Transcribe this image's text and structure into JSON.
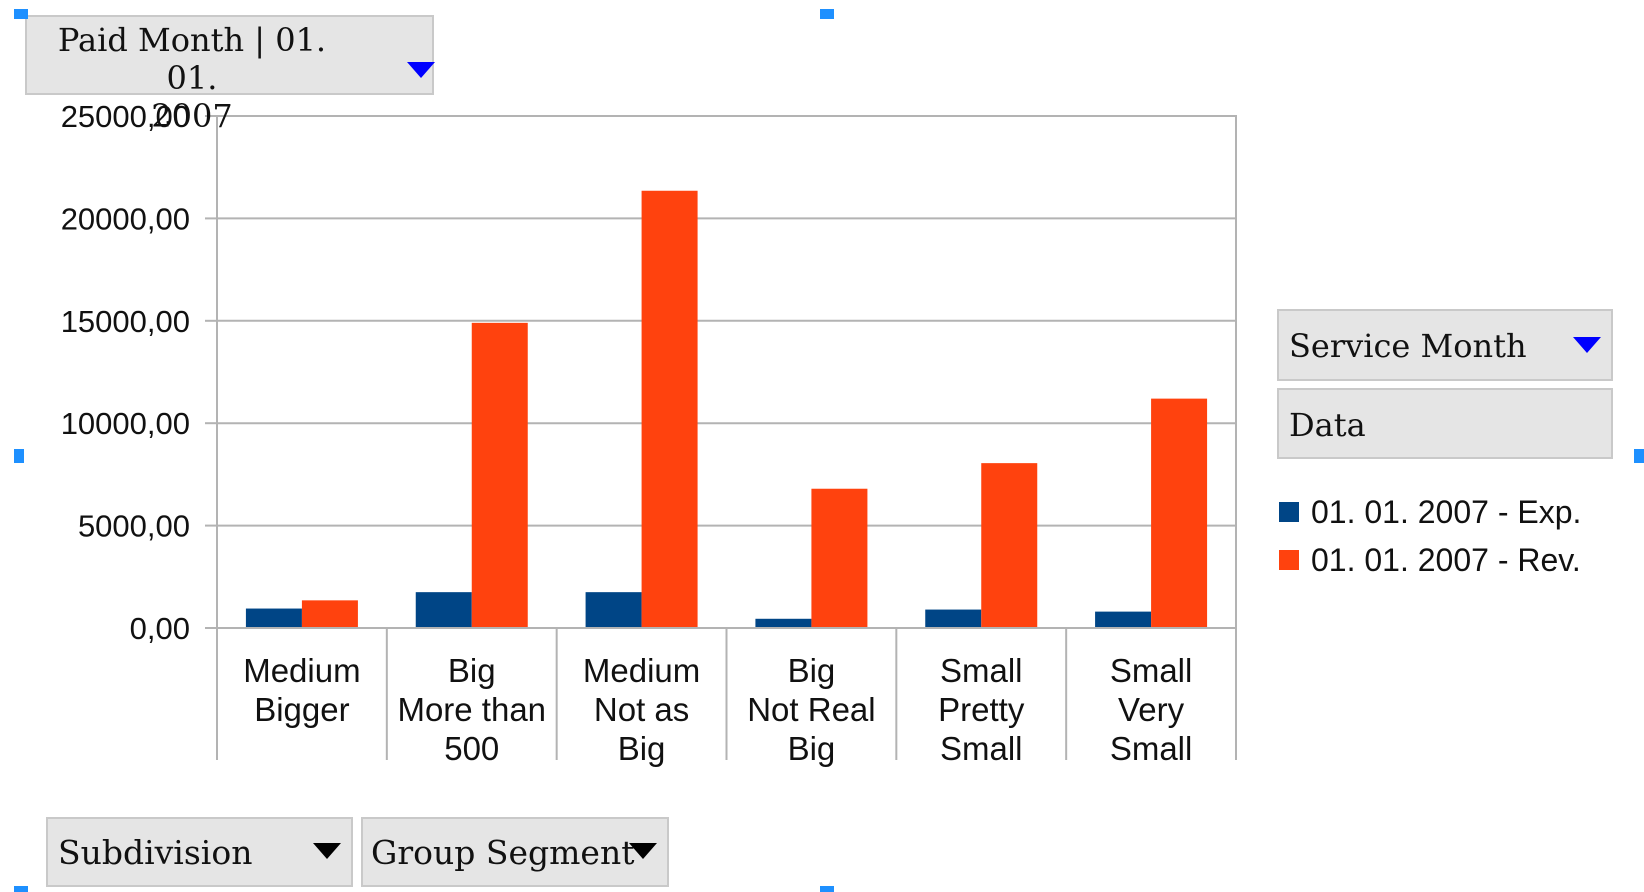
{
  "filters": {
    "paid_month_line1": "Paid Month | 01. 01.",
    "paid_month_line2": "2007",
    "service_month": "Service Month",
    "data": "Data",
    "subdivision": "Subdivision",
    "group_segment": "Group Segment"
  },
  "colors": {
    "exp": "#004586",
    "rev": "#ff420e",
    "grid": "#b3b3b3",
    "filter_arrow_active": "#0000ff"
  },
  "chart_data": {
    "type": "bar",
    "categories": [
      [
        "Medium",
        "Bigger"
      ],
      [
        "Big",
        "More than",
        "500"
      ],
      [
        "Medium",
        "Not as",
        "Big"
      ],
      [
        "Big",
        "Not Real",
        "Big"
      ],
      [
        "Small",
        "Pretty",
        "Small"
      ],
      [
        "Small",
        "Very",
        "Small"
      ]
    ],
    "series": [
      {
        "name": "01. 01. 2007 - Exp.",
        "color": "#004586",
        "values": [
          950,
          1750,
          1750,
          450,
          900,
          800
        ]
      },
      {
        "name": "01. 01. 2007 - Rev.",
        "color": "#ff420e",
        "values": [
          1350,
          14900,
          21350,
          6800,
          8050,
          11200
        ]
      }
    ],
    "y_ticks": [
      "0,00",
      "5000,00",
      "10000,00",
      "15000,00",
      "20000,00",
      "25000,00"
    ],
    "ylim": [
      0,
      25000
    ],
    "grid": true,
    "legend_position": "right"
  }
}
